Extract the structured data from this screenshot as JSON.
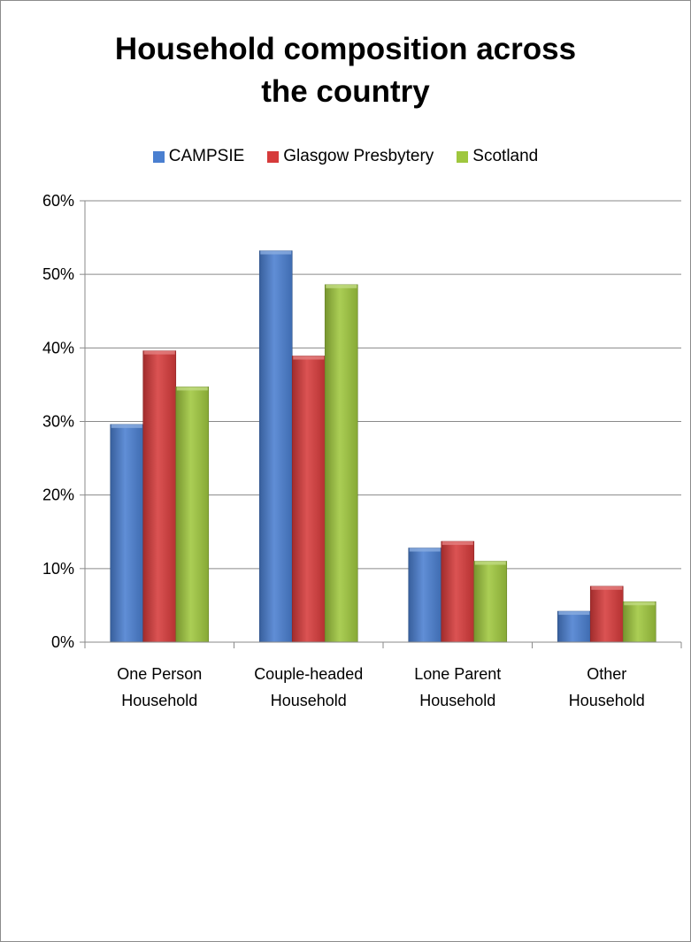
{
  "chart_data": {
    "type": "bar",
    "title_lines": [
      "Household composition across",
      "the country"
    ],
    "categories": [
      [
        "One Person",
        "Household"
      ],
      [
        "Couple-headed",
        "Household"
      ],
      [
        "Lone Parent",
        "Household"
      ],
      [
        "Other",
        "Household"
      ]
    ],
    "series": [
      {
        "name": "CAMPSIE",
        "color": "#4a7fd0",
        "values": [
          29.6,
          53.2,
          12.8,
          4.2
        ]
      },
      {
        "name": "Glasgow Presbytery",
        "color": "#d63b3b",
        "values": [
          39.6,
          38.9,
          13.7,
          7.6
        ]
      },
      {
        "name": "Scotland",
        "color": "#9fc73e",
        "values": [
          34.7,
          48.6,
          11.0,
          5.5
        ]
      }
    ],
    "ylim": [
      0,
      60
    ],
    "yticks": [
      "0%",
      "10%",
      "20%",
      "30%",
      "40%",
      "50%",
      "60%"
    ],
    "grid": true,
    "legend_position": "top"
  }
}
